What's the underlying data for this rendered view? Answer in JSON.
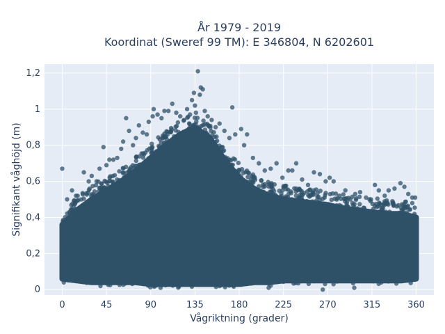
{
  "chart_data": {
    "type": "scatter",
    "title_lines": [
      "År 1979 - 2019",
      "Koordinat (Sweref 99 TM): E 346804, N 6202601"
    ],
    "xlabel": "Vågriktning (grader)",
    "ylabel": "Signifikant våghöjd (m)",
    "xlim": [
      -18,
      378
    ],
    "ylim": [
      -0.03,
      1.25
    ],
    "xticks": [
      0,
      45,
      90,
      135,
      180,
      225,
      270,
      315,
      360
    ],
    "xtick_labels": [
      "0",
      "45",
      "90",
      "135",
      "180",
      "225",
      "270",
      "315",
      "360"
    ],
    "yticks": [
      0,
      0.2,
      0.4,
      0.6,
      0.8,
      1.0,
      1.2
    ],
    "ytick_labels": [
      "0",
      "0,2",
      "0,4",
      "0,6",
      "0,8",
      "1",
      "1,2"
    ],
    "grid": true,
    "colors": {
      "marker": "#2f5168",
      "plot_bg": "#e5ecf6",
      "grid": "#ffffff"
    },
    "envelope": {
      "x": [
        0,
        15,
        30,
        45,
        60,
        75,
        90,
        105,
        120,
        135,
        150,
        165,
        180,
        195,
        210,
        225,
        240,
        255,
        270,
        285,
        300,
        315,
        330,
        345,
        360
      ],
      "upper": [
        0.36,
        0.44,
        0.5,
        0.55,
        0.6,
        0.66,
        0.73,
        0.8,
        0.86,
        0.9,
        0.84,
        0.72,
        0.62,
        0.56,
        0.52,
        0.5,
        0.49,
        0.48,
        0.47,
        0.45,
        0.44,
        0.43,
        0.42,
        0.42,
        0.4
      ],
      "lower": [
        0.06,
        0.05,
        0.04,
        0.04,
        0.04,
        0.04,
        0.03,
        0.03,
        0.03,
        0.03,
        0.03,
        0.03,
        0.03,
        0.04,
        0.04,
        0.05,
        0.05,
        0.05,
        0.05,
        0.05,
        0.05,
        0.05,
        0.05,
        0.05,
        0.06
      ]
    },
    "outliers": [
      {
        "x": 0,
        "y": 0.67
      },
      {
        "x": 5,
        "y": 0.5
      },
      {
        "x": 10,
        "y": 0.55
      },
      {
        "x": 14,
        "y": 0.52
      },
      {
        "x": 22,
        "y": 0.65
      },
      {
        "x": 27,
        "y": 0.6
      },
      {
        "x": 30,
        "y": 0.63
      },
      {
        "x": 35,
        "y": 0.6
      },
      {
        "x": 38,
        "y": 0.67
      },
      {
        "x": 42,
        "y": 0.79
      },
      {
        "x": 45,
        "y": 0.69
      },
      {
        "x": 48,
        "y": 0.72
      },
      {
        "x": 52,
        "y": 0.72
      },
      {
        "x": 56,
        "y": 0.73
      },
      {
        "x": 60,
        "y": 0.78
      },
      {
        "x": 62,
        "y": 0.82
      },
      {
        "x": 65,
        "y": 0.95
      },
      {
        "x": 68,
        "y": 0.88
      },
      {
        "x": 72,
        "y": 0.8
      },
      {
        "x": 75,
        "y": 0.84
      },
      {
        "x": 78,
        "y": 0.91
      },
      {
        "x": 82,
        "y": 0.87
      },
      {
        "x": 86,
        "y": 0.86
      },
      {
        "x": 88,
        "y": 0.93
      },
      {
        "x": 92,
        "y": 0.96
      },
      {
        "x": 93,
        "y": 1.0
      },
      {
        "x": 97,
        "y": 0.97
      },
      {
        "x": 101,
        "y": 0.95
      },
      {
        "x": 104,
        "y": 0.99
      },
      {
        "x": 108,
        "y": 0.99
      },
      {
        "x": 112,
        "y": 1.03
      },
      {
        "x": 116,
        "y": 0.98
      },
      {
        "x": 120,
        "y": 0.96
      },
      {
        "x": 124,
        "y": 0.94
      },
      {
        "x": 127,
        "y": 1.0
      },
      {
        "x": 130,
        "y": 0.97
      },
      {
        "x": 132,
        "y": 1.05
      },
      {
        "x": 134,
        "y": 1.09
      },
      {
        "x": 135,
        "y": 1.02
      },
      {
        "x": 136,
        "y": 0.98
      },
      {
        "x": 138,
        "y": 1.21
      },
      {
        "x": 140,
        "y": 1.08
      },
      {
        "x": 141,
        "y": 1.12
      },
      {
        "x": 143,
        "y": 1.11
      },
      {
        "x": 145,
        "y": 0.99
      },
      {
        "x": 148,
        "y": 0.96
      },
      {
        "x": 152,
        "y": 0.94
      },
      {
        "x": 156,
        "y": 0.9
      },
      {
        "x": 160,
        "y": 0.92
      },
      {
        "x": 165,
        "y": 0.88
      },
      {
        "x": 170,
        "y": 0.84
      },
      {
        "x": 173,
        "y": 1.01
      },
      {
        "x": 176,
        "y": 0.86
      },
      {
        "x": 182,
        "y": 0.89
      },
      {
        "x": 185,
        "y": 0.8
      },
      {
        "x": 188,
        "y": 0.86
      },
      {
        "x": 194,
        "y": 0.73
      },
      {
        "x": 200,
        "y": 0.7
      },
      {
        "x": 206,
        "y": 0.66
      },
      {
        "x": 212,
        "y": 0.67
      },
      {
        "x": 218,
        "y": 0.7
      },
      {
        "x": 224,
        "y": 0.62
      },
      {
        "x": 230,
        "y": 0.66
      },
      {
        "x": 234,
        "y": 0.66
      },
      {
        "x": 238,
        "y": 0.7
      },
      {
        "x": 244,
        "y": 0.61
      },
      {
        "x": 250,
        "y": 0.58
      },
      {
        "x": 256,
        "y": 0.65
      },
      {
        "x": 262,
        "y": 0.64
      },
      {
        "x": 268,
        "y": 0.6
      },
      {
        "x": 272,
        "y": 0.62
      },
      {
        "x": 276,
        "y": 0.6
      },
      {
        "x": 282,
        "y": 0.52
      },
      {
        "x": 288,
        "y": 0.55
      },
      {
        "x": 293,
        "y": 0.5
      },
      {
        "x": 298,
        "y": 0.53
      },
      {
        "x": 303,
        "y": 0.54
      },
      {
        "x": 309,
        "y": 0.51
      },
      {
        "x": 314,
        "y": 0.5
      },
      {
        "x": 318,
        "y": 0.58
      },
      {
        "x": 322,
        "y": 0.55
      },
      {
        "x": 328,
        "y": 0.52
      },
      {
        "x": 332,
        "y": 0.55
      },
      {
        "x": 338,
        "y": 0.56
      },
      {
        "x": 344,
        "y": 0.59
      },
      {
        "x": 348,
        "y": 0.57
      },
      {
        "x": 352,
        "y": 0.53
      },
      {
        "x": 356,
        "y": 0.51
      },
      {
        "x": 359,
        "y": 0.51
      },
      {
        "x": 265,
        "y": 0.0
      },
      {
        "x": 297,
        "y": 0.01
      },
      {
        "x": 210,
        "y": 0.01
      },
      {
        "x": 160,
        "y": 0.02
      },
      {
        "x": 100,
        "y": 0.01
      }
    ]
  }
}
